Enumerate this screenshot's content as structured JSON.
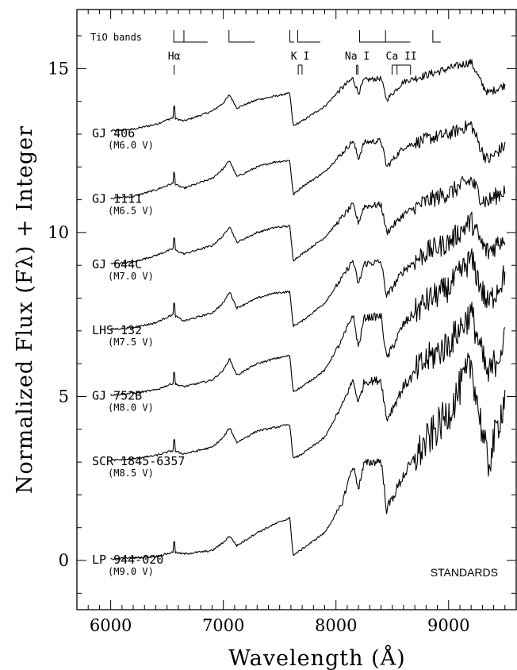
{
  "chart_data": {
    "type": "line",
    "title": "",
    "xlabel": "Wavelength (Å)",
    "ylabel": "Normalized Flux (Fλ) + Integer",
    "xlim": [
      5700,
      9600
    ],
    "ylim": [
      -1.5,
      16.8
    ],
    "xticks": [
      6000,
      7000,
      8000,
      9000
    ],
    "xtick_labels": [
      "6000",
      "7000",
      "8000",
      "9000"
    ],
    "yticks": [
      0,
      5,
      10,
      15
    ],
    "ytick_labels": [
      "0",
      "5",
      "10",
      "15"
    ],
    "grid": false,
    "annotation": "STANDARDS",
    "tio_label": "TiO bands",
    "tio_bands": [
      [
        6560,
        6650,
        6860
      ],
      [
        7050,
        7280
      ],
      [
        7590,
        7630
      ],
      [
        7660,
        7860
      ],
      [
        8210,
        8440,
        8660
      ],
      [
        8860,
        8930
      ]
    ],
    "features": [
      {
        "label": "Hα",
        "lines": [
          6563
        ]
      },
      {
        "label": "K I",
        "lines": [
          7665,
          7699
        ]
      },
      {
        "label": "Na I",
        "lines": [
          8183,
          8195
        ]
      },
      {
        "label": "Ca II",
        "lines": [
          8498,
          8542,
          8662
        ]
      }
    ],
    "series": [
      {
        "name": "GJ 406",
        "spectral_type": "(M6.0 V)",
        "offset": 13,
        "x": [
          6000,
          6200,
          6400,
          6550,
          6650,
          6900,
          7000,
          7055,
          7120,
          7300,
          7450,
          7590,
          7620,
          7700,
          7900,
          8050,
          8150,
          8200,
          8250,
          8400,
          8450,
          8600,
          8800,
          9000,
          9200,
          9300,
          9350,
          9500
        ],
        "y": [
          13.1,
          13.15,
          13.3,
          13.5,
          13.4,
          13.7,
          13.95,
          14.2,
          13.8,
          14.05,
          14.15,
          14.25,
          13.25,
          13.4,
          13.85,
          14.4,
          14.7,
          14.25,
          14.65,
          14.7,
          14.05,
          14.6,
          14.8,
          15.0,
          15.2,
          14.5,
          14.25,
          14.5
        ]
      },
      {
        "name": "GJ 1111",
        "spectral_type": "(M6.5 V)",
        "offset": 11,
        "x": [
          6000,
          6200,
          6400,
          6550,
          6650,
          6900,
          7000,
          7055,
          7120,
          7300,
          7450,
          7590,
          7620,
          7700,
          7900,
          8050,
          8150,
          8200,
          8250,
          8400,
          8450,
          8600,
          8800,
          9000,
          9200,
          9300,
          9350,
          9500
        ],
        "y": [
          11.05,
          11.1,
          11.3,
          11.5,
          11.35,
          11.65,
          11.95,
          12.2,
          11.7,
          12.0,
          12.15,
          12.2,
          11.15,
          11.4,
          11.85,
          12.4,
          12.8,
          12.25,
          12.75,
          12.8,
          12.0,
          12.6,
          12.85,
          13.0,
          13.3,
          12.45,
          12.2,
          12.65
        ]
      },
      {
        "name": "GJ 644C",
        "spectral_type": "(M7.0 V)",
        "offset": 9,
        "x": [
          6000,
          6200,
          6400,
          6550,
          6650,
          6900,
          7000,
          7055,
          7120,
          7300,
          7450,
          7590,
          7620,
          7700,
          7900,
          8050,
          8150,
          8200,
          8250,
          8400,
          8450,
          8600,
          8800,
          9000,
          9200,
          9300,
          9350,
          9500
        ],
        "y": [
          9.05,
          9.1,
          9.3,
          9.5,
          9.35,
          9.6,
          9.9,
          10.2,
          9.7,
          10.0,
          10.15,
          10.2,
          9.15,
          9.35,
          9.85,
          10.45,
          10.85,
          10.3,
          10.8,
          10.85,
          10.0,
          10.55,
          10.95,
          11.2,
          11.6,
          11.0,
          10.95,
          11.3
        ]
      },
      {
        "name": "LHS 132",
        "spectral_type": "(M7.5 V)",
        "offset": 7,
        "x": [
          6000,
          6200,
          6400,
          6550,
          6650,
          6900,
          7000,
          7055,
          7120,
          7300,
          7450,
          7590,
          7620,
          7700,
          7900,
          8050,
          8150,
          8200,
          8250,
          8400,
          8450,
          8600,
          8800,
          9000,
          9200,
          9300,
          9350,
          9500
        ],
        "y": [
          7.05,
          7.1,
          7.25,
          7.5,
          7.3,
          7.55,
          7.85,
          8.2,
          7.7,
          8.0,
          8.15,
          8.2,
          7.15,
          7.3,
          7.85,
          8.6,
          9.15,
          8.4,
          9.05,
          9.1,
          8.05,
          8.85,
          9.4,
          9.7,
          10.35,
          9.6,
          9.4,
          9.9
        ]
      },
      {
        "name": "GJ 752B",
        "spectral_type": "(M8.0 V)",
        "offset": 5,
        "x": [
          6000,
          6200,
          6400,
          6550,
          6650,
          6900,
          7000,
          7055,
          7120,
          7300,
          7450,
          7590,
          7620,
          7700,
          7900,
          8050,
          8150,
          8200,
          8250,
          8400,
          8450,
          8600,
          8800,
          9000,
          9200,
          9300,
          9350,
          9500
        ],
        "y": [
          5.05,
          5.1,
          5.2,
          5.4,
          5.3,
          5.5,
          5.8,
          6.15,
          5.65,
          6.0,
          6.15,
          6.25,
          5.15,
          5.3,
          5.8,
          6.7,
          7.5,
          6.5,
          7.4,
          7.45,
          6.15,
          7.2,
          7.9,
          8.3,
          9.2,
          8.2,
          7.8,
          8.7
        ]
      },
      {
        "name": "SCR 1845-6357",
        "spectral_type": "(M8.5 V)",
        "offset": 3,
        "x": [
          6000,
          6200,
          6400,
          6550,
          6650,
          6900,
          7000,
          7055,
          7120,
          7300,
          7450,
          7590,
          7620,
          7700,
          7900,
          8050,
          8150,
          8200,
          8250,
          8400,
          8450,
          8600,
          8800,
          9000,
          9200,
          9300,
          9350,
          9500
        ],
        "y": [
          3.05,
          3.1,
          3.2,
          3.35,
          3.25,
          3.45,
          3.75,
          4.05,
          3.6,
          3.95,
          4.05,
          4.15,
          3.1,
          3.25,
          3.75,
          4.7,
          5.5,
          4.8,
          5.45,
          5.5,
          4.3,
          5.3,
          6.1,
          6.6,
          7.55,
          6.2,
          5.6,
          6.7
        ]
      },
      {
        "name": "LP 944-020",
        "spectral_type": "(M9.0 V)",
        "offset": 0,
        "x": [
          6000,
          6200,
          6400,
          6550,
          6650,
          6900,
          7000,
          7055,
          7120,
          7300,
          7450,
          7590,
          7620,
          7700,
          7900,
          8050,
          8150,
          8200,
          8250,
          8400,
          8450,
          8600,
          8800,
          9000,
          9200,
          9300,
          9350,
          9500
        ],
        "y": [
          0.05,
          0.08,
          0.12,
          0.25,
          0.2,
          0.3,
          0.55,
          0.75,
          0.45,
          0.85,
          1.1,
          1.3,
          0.15,
          0.35,
          0.85,
          1.7,
          2.9,
          2.2,
          2.95,
          3.05,
          1.55,
          2.6,
          3.6,
          4.5,
          6.0,
          3.9,
          2.9,
          5.0
        ]
      }
    ]
  }
}
